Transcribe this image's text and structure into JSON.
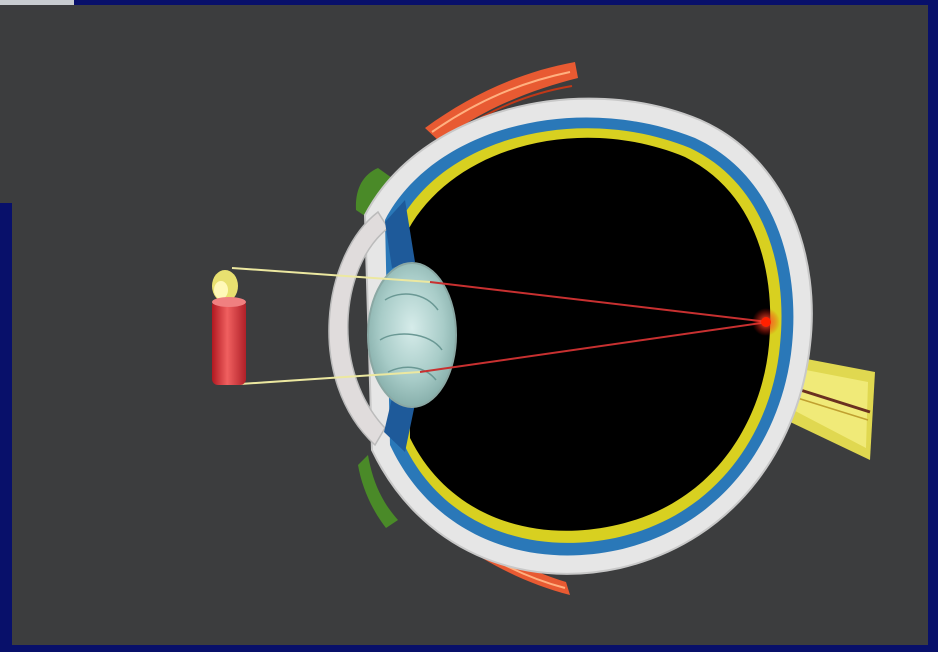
{
  "diagram": {
    "subject": "eye-cross-section-image-formation",
    "colors": {
      "slide_background": "#08106a",
      "panel": "#3c3d3e",
      "vitreous": "#000000",
      "sclera": "#e8e8e8",
      "choroid": "#2a78b8",
      "retina": "#d8d020",
      "lens": "#b8d8d4",
      "muscle": "#e85a32",
      "candle_body": "#d83030",
      "candle_flame": "#e8e070",
      "light_ray": "#ece8a0",
      "refracted_ray": "#c83030",
      "focal_spot": "#ff2000",
      "optic_nerve": "#e0d850"
    }
  }
}
